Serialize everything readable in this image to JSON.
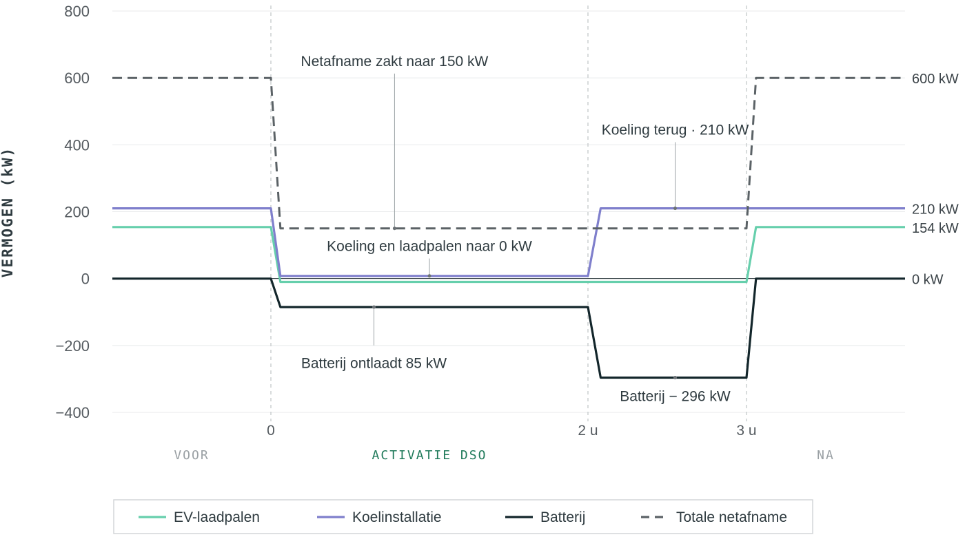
{
  "chart_data": {
    "type": "line",
    "ylabel": "VERMOGEN (kW)",
    "xlabel": "",
    "ylim": [
      -400,
      800
    ],
    "yticks": [
      800,
      600,
      400,
      200,
      0,
      -200,
      -400
    ],
    "ytick_labels": [
      "800",
      "600",
      "400",
      "200",
      "0",
      "−200",
      "−400"
    ],
    "xlim": [
      -1,
      4
    ],
    "xticks": [
      {
        "x": 0,
        "label": "0"
      },
      {
        "x": 2,
        "label": "2 u"
      },
      {
        "x": 3,
        "label": "3 u"
      }
    ],
    "event_lines_x": [
      0,
      2,
      3
    ],
    "phases": [
      {
        "label": "VOOR",
        "x": -0.5,
        "color": "#9aa0a4"
      },
      {
        "label": "ACTIVATIE DSO",
        "x": 1,
        "color": "#1f7a5a"
      },
      {
        "label": "NA",
        "x": 3.5,
        "color": "#9aa0a4"
      }
    ],
    "series": [
      {
        "name": "EV-laadpalen",
        "color": "#66cfac",
        "dash": false,
        "x": [
          -1,
          0,
          0.06,
          2,
          2.08,
          3,
          3.06,
          4
        ],
        "y": [
          154,
          154,
          -10,
          -10,
          -10,
          -10,
          154,
          154
        ]
      },
      {
        "name": "Koelinstallatie",
        "color": "#7f7fcc",
        "dash": false,
        "x": [
          -1,
          0,
          0.06,
          2,
          2.08,
          3,
          3.06,
          4
        ],
        "y": [
          210,
          210,
          8,
          8,
          210,
          210,
          210,
          210
        ]
      },
      {
        "name": "Batterij",
        "color": "#13262b",
        "dash": false,
        "x": [
          -1,
          0,
          0.06,
          2,
          2.08,
          3,
          3.06,
          4
        ],
        "y": [
          0,
          0,
          -85,
          -85,
          -296,
          -296,
          0,
          0
        ]
      },
      {
        "name": "Totale netafname",
        "color": "#5b6266",
        "dash": true,
        "x": [
          -1,
          0,
          0.06,
          2,
          2.08,
          3,
          3.06,
          4
        ],
        "y": [
          600,
          600,
          150,
          150,
          150,
          150,
          600,
          600
        ]
      }
    ],
    "annotations": [
      {
        "text": "Netafname zakt naar 150 kW",
        "x": 0.78,
        "y": 150,
        "label_y": 650,
        "anchor": "middle"
      },
      {
        "text": "Koeling terug · 210 kW",
        "x": 2.55,
        "y": 210,
        "label_y": 445,
        "anchor": "middle"
      },
      {
        "text": "Koeling en laadpalen naar 0 kW",
        "x": 1.0,
        "y": 8,
        "label_y": 97,
        "anchor": "middle"
      },
      {
        "text": "Batterij ontlaadt 85 kW",
        "x": 0.65,
        "y": -85,
        "label_y": -253,
        "anchor": "middle"
      },
      {
        "text": "Batterij − 296 kW",
        "x": 2.55,
        "y": -296,
        "label_y": -352,
        "anchor": "middle"
      }
    ],
    "end_labels": [
      {
        "text": "600 kW",
        "y": 600
      },
      {
        "text": "210 kW",
        "y": 210
      },
      {
        "text": "154 kW",
        "y": 154
      },
      {
        "text": "0 kW",
        "y": 0
      }
    ],
    "legend": {
      "placement": "bottom",
      "entries": [
        "EV-laadpalen",
        "Koelinstallatie",
        "Batterij",
        "Totale netafname"
      ]
    }
  }
}
